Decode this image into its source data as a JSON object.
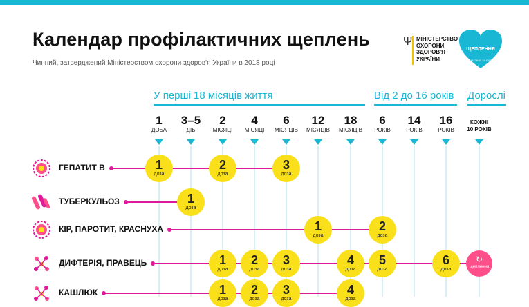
{
  "colors": {
    "cyan": "#19b7d4",
    "yellow": "#f9e01b",
    "magenta": "#e0199b",
    "pink": "#ff4f8b",
    "grid": "#d7f0f6"
  },
  "header": {
    "title": "Календар профілактичних щеплень",
    "subtitle": "Чинний, затверджений Міністерством охорони здоров'я України в 2018 році",
    "ministry": "МІНІСТЕРСТВО\nОХОРОНИ\nЗДОРОВ'Я\nУКРАЇНИ",
    "logo_title": "ЩЕПЛЕННЯ",
    "logo_subtitle": "ВЧАСНИЙ ЗАХИСТ",
    "logo_brand": "unicef"
  },
  "sections": [
    {
      "label": "У перші 18 місяців життя"
    },
    {
      "label": "Від 2 до 16 років"
    },
    {
      "label": "Дорослі"
    }
  ],
  "ages": [
    {
      "num": "1",
      "unit": "ДОБА"
    },
    {
      "num": "3–5",
      "unit": "ДІБ"
    },
    {
      "num": "2",
      "unit": "МІСЯЦІ"
    },
    {
      "num": "4",
      "unit": "МІСЯЦІ"
    },
    {
      "num": "6",
      "unit": "МІСЯЦІВ"
    },
    {
      "num": "12",
      "unit": "МІСЯЦІВ"
    },
    {
      "num": "18",
      "unit": "МІСЯЦІВ"
    },
    {
      "num": "6",
      "unit": "РОКІВ"
    },
    {
      "num": "14",
      "unit": "РОКІВ"
    },
    {
      "num": "16",
      "unit": "РОКІВ"
    },
    {
      "special": "КОЖНІ\n10 РОКІВ"
    }
  ],
  "dose_word": "доза",
  "adult_dose": {
    "symbol": "↻",
    "label": "щеплення"
  },
  "rows": [
    {
      "name": "ГЕПАТИТ В",
      "icon": "hepatitis-virus-icon",
      "doses": [
        {
          "col": 0,
          "n": "1"
        },
        {
          "col": 2,
          "n": "2"
        },
        {
          "col": 4,
          "n": "3"
        }
      ]
    },
    {
      "name": "ТУБЕРКУЛЬОЗ",
      "icon": "tuberculosis-bacteria-icon",
      "doses": [
        {
          "col": 1,
          "n": "1"
        }
      ]
    },
    {
      "name": "КІР, ПАРОТИТ, КРАСНУХА",
      "icon": "measles-virus-icon",
      "doses": [
        {
          "col": 5,
          "n": "1"
        },
        {
          "col": 7,
          "n": "2"
        }
      ]
    },
    {
      "name": "ДИФТЕРІЯ, ПРАВЕЦЬ",
      "icon": "diphtheria-bacteria-icon",
      "doses": [
        {
          "col": 2,
          "n": "1"
        },
        {
          "col": 3,
          "n": "2"
        },
        {
          "col": 4,
          "n": "3"
        },
        {
          "col": 6,
          "n": "4"
        },
        {
          "col": 7,
          "n": "5"
        },
        {
          "col": 9,
          "n": "6"
        }
      ],
      "adult": true
    },
    {
      "name": "КАШЛЮК",
      "icon": "pertussis-bacteria-icon",
      "doses": [
        {
          "col": 2,
          "n": "1"
        },
        {
          "col": 3,
          "n": "2"
        },
        {
          "col": 4,
          "n": "3"
        },
        {
          "col": 6,
          "n": "4"
        }
      ]
    }
  ]
}
